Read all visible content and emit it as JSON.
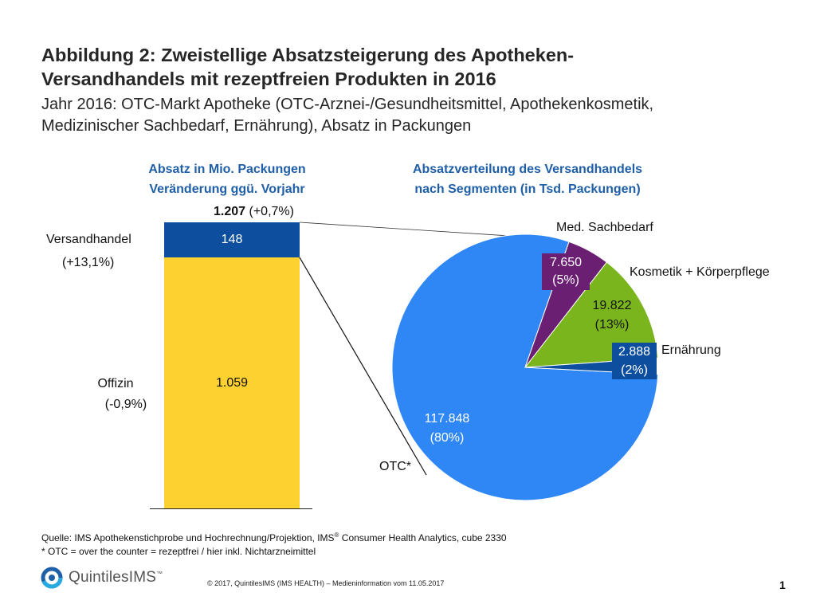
{
  "header": {
    "title_line1": "Abbildung 2: Zweistellige Absatzsteigerung des Apotheken-",
    "title_line2": "Versandhandels mit rezeptfreien Produkten in 2016",
    "subtitle_line1": "Jahr 2016: OTC-Markt Apotheke (OTC-Arznei-/Gesundheitsmittel, Apothekenkosmetik,",
    "subtitle_line2": "Medizinischer Sachbedarf, Ernährung), Absatz in Packungen"
  },
  "bar_panel": {
    "heading_line1": "Absatz in Mio. Packungen",
    "heading_line2": "Veränderung ggü. Vorjahr",
    "total_value": "1.207",
    "total_change": "(+0,7%)",
    "versand_label": "Versandhandel",
    "versand_change": "(+13,1%)",
    "offizin_label": "Offizin",
    "offizin_change": "(-0,9%)"
  },
  "pie_panel": {
    "heading_line1": "Absatzverteilung des Versandhandels",
    "heading_line2": "nach Segmenten (in Tsd. Packungen)",
    "labels": {
      "med": "Med. Sachbedarf",
      "kosmetik": "Kosmetik + Körperpflege",
      "ernaehrung": "Ernährung",
      "otc": "OTC*"
    }
  },
  "chart_data": [
    {
      "type": "bar",
      "stacked": true,
      "title": "Absatz in Mio. Packungen",
      "categories": [
        "2016"
      ],
      "series": [
        {
          "name": "Offizin",
          "values": [
            1059
          ],
          "label": "1.059",
          "change": "(-0,9%)",
          "color": "#fdd130"
        },
        {
          "name": "Versandhandel",
          "values": [
            148
          ],
          "label": "148",
          "change": "(+13,1%)",
          "color": "#0d4f9e"
        }
      ],
      "total": 1207,
      "ylim": [
        0,
        1207
      ]
    },
    {
      "type": "pie",
      "title": "Absatzverteilung des Versandhandels nach Segmenten (in Tsd. Packungen)",
      "slices": [
        {
          "name": "OTC*",
          "value": 117848,
          "percent": 80,
          "value_label": "117.848",
          "percent_label": "(80%)",
          "color": "#2f86f5"
        },
        {
          "name": "Med. Sachbedarf",
          "value": 7650,
          "percent": 5,
          "value_label": "7.650",
          "percent_label": "(5%)",
          "color": "#6b1f73"
        },
        {
          "name": "Kosmetik + Körperpflege",
          "value": 19822,
          "percent": 13,
          "value_label": "19.822",
          "percent_label": "(13%)",
          "color": "#7ab51d"
        },
        {
          "name": "Ernährung",
          "value": 2888,
          "percent": 2,
          "value_label": "2.888",
          "percent_label": "(2%)",
          "color": "#0d4f9e"
        }
      ]
    }
  ],
  "footer": {
    "source_prefix": "Quelle: IMS Apothekenstichprobe und Hochrechnung/Projektion, IMS",
    "source_reg": "®",
    "source_suffix": " Consumer Health Analytics, cube 2330",
    "note": "* OTC = over the counter = rezeptfrei / hier inkl. Nichtarzneimittel",
    "copyright": "© 2017, QuintilesIMS (IMS HEALTH) – Medieninformation vom 11.05.2017",
    "page_number": "1",
    "logo_text": "QuintilesIMS",
    "logo_tm": "™"
  },
  "colors": {
    "heading_blue": "#1f5fa8",
    "offizin_yellow": "#fdd130",
    "versand_navy": "#0d4f9e",
    "otc_blue": "#2f86f5",
    "med_purple": "#6b1f73",
    "kosmetik_green": "#7ab51d"
  }
}
